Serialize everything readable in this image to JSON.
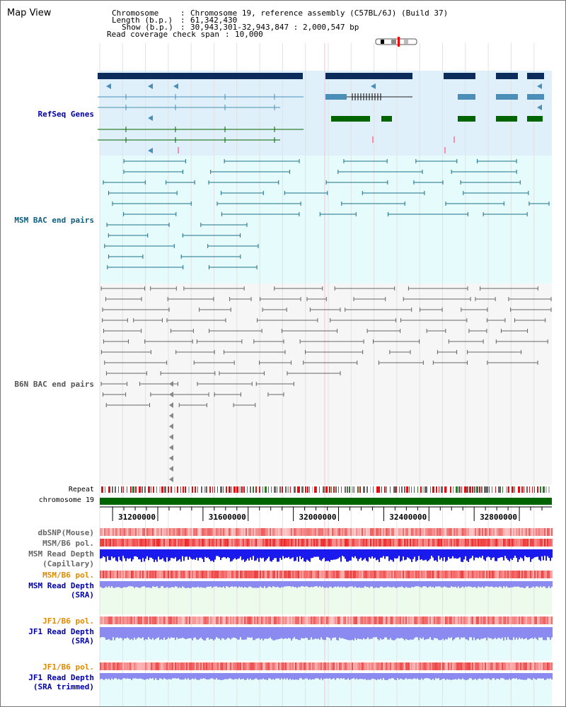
{
  "view": {
    "title": "Map View",
    "info": [
      {
        "key": "Chromosome",
        "value": "Chromosome 19, reference assembly (C57BL/6J) (Build 37)"
      },
      {
        "key": "Length (b.p.)",
        "value": "61,342,430"
      },
      {
        "key": "Show (b.p.)",
        "value": "30,943,301-32,943,847 : 2,000,547 bp"
      },
      {
        "key": "Read coverage check span",
        "value": "10,000"
      }
    ]
  },
  "labels": {
    "refseq": "RefSeq Genes",
    "msm_bac": "MSM BAC end pairs",
    "b6n_bac": "B6N BAC end pairs",
    "repeat": "Repeat",
    "chromosome": "chromosome 19",
    "dbsnp": "dbSNP(Mouse)",
    "msm_pol_1": "MSM/B6 pol.",
    "msm_depth_cap_1": "MSM Read Depth",
    "msm_depth_cap_2": "(Capillary)",
    "msm_pol_2": "MSM/B6 pol.",
    "msm_depth_sra_1": "MSM Read Depth",
    "msm_depth_sra_2": "(SRA)",
    "jf1_pol_1": "JF1/B6 pol.",
    "jf1_depth_sra_1": "JF1 Read Depth",
    "jf1_depth_sra_2": "(SRA)",
    "jf1_pol_2": "JF1/B6 pol.",
    "jf1_depth_trim_1": "JF1 Read Depth",
    "jf1_depth_trim_2": "(SRA trimmed)"
  },
  "axis": {
    "ticks": [
      "31200000",
      "31600000",
      "32000000",
      "32400000",
      "32800000"
    ],
    "tick_values": [
      31200000,
      31600000,
      32000000,
      32400000,
      32800000
    ],
    "start": 30943301,
    "end": 32943847
  },
  "colors": {
    "refseq_bg": "#dff0fa",
    "msm_bg": "#e6fbfb",
    "b6n_bg": "#f6f6f6",
    "msm_sra_bg": "#ecfbec",
    "jf1_bg": "#e6fbfb",
    "gene_dark": "#0c2c5c",
    "gene_mid": "#4b8fb8",
    "gene_green": "#006400",
    "msm_pair": "#1b6f8a",
    "b6n_pair": "#666666",
    "chromosome_bar": "#006400",
    "label_blue": "#0000aa",
    "label_orange": "#e08a00",
    "label_gray": "#444444",
    "depth_blue": "#1a1aee",
    "depth_light": "#8a8af0"
  }
}
